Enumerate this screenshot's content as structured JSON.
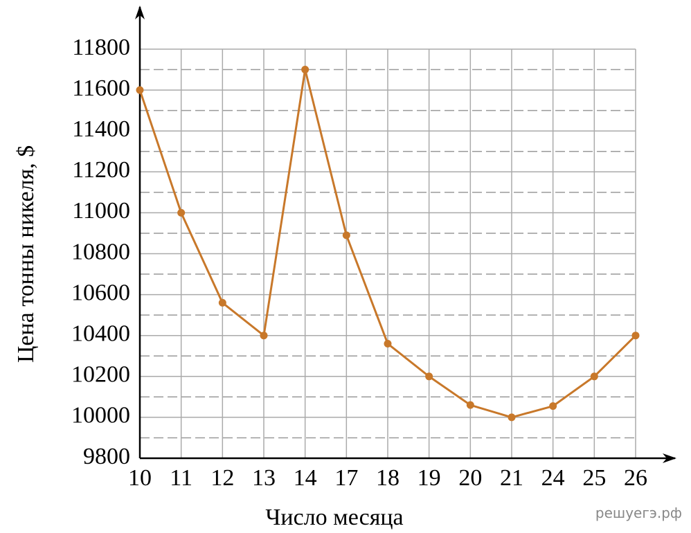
{
  "chart_data": {
    "type": "line",
    "x_label": "Число месяца",
    "y_label": "Цена тонны никеля, $",
    "watermark": "решуегэ.рф",
    "categories": [
      "10",
      "11",
      "12",
      "13",
      "14",
      "17",
      "18",
      "19",
      "20",
      "21",
      "24",
      "25",
      "26"
    ],
    "series": [
      {
        "color": "#c8782a",
        "values": [
          11600,
          11000,
          10560,
          10400,
          11700,
          10890,
          10360,
          10200,
          10060,
          10000,
          10055,
          10200,
          10400
        ]
      }
    ],
    "ylim": [
      9800,
      11800
    ],
    "yticks": [
      9800,
      10000,
      10200,
      10400,
      10600,
      10800,
      11000,
      11200,
      11400,
      11600,
      11800
    ],
    "minor_yticks": [
      9900,
      10100,
      10300,
      10500,
      10700,
      10900,
      11100,
      11300,
      11500,
      11700
    ],
    "grid": true
  }
}
